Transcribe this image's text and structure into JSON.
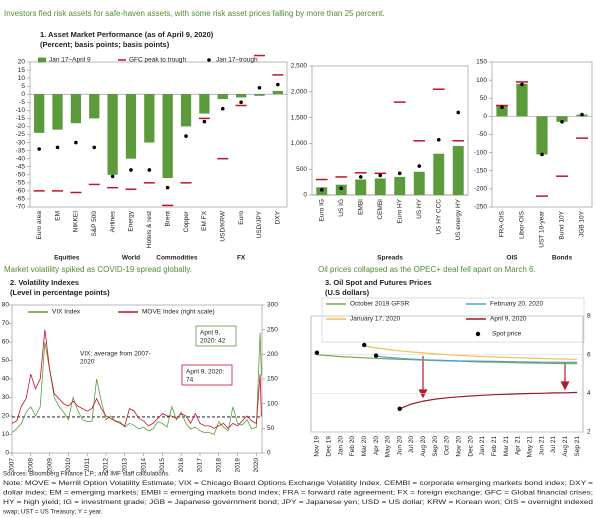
{
  "headlines": [
    "Investors fled risk assets for safe-haven assets, with some risk asset prices falling by more than 25 percent.",
    "Market volatility  spiked as COVID-19 spread globally.",
    "Oil prices collapsed as the OPEC+ deal fell apart on March 6."
  ],
  "notes": [
    "Sources: Bloomberg Finance L.P.; and IMF staff calculations.",
    "Note: MOVE = Merrill Option Volatility Estimate; VIX = Chicago Board Options Exchange Volatility Index. CEMBI = corporate emerging markets bond index; DXY =",
    "dollar index; EM = emerging markets; EMBI = emerging markets bond index; FRA = forward rate agreement; FX = foreign exchange; GFC = Global financial crises;",
    "HY = high yield; IG = investment grade; JGB = Japanese government bond; JPY = Japanese yen; USD = US dollar; KRW = Korean won; OIS = overnight indexed",
    "swap; UST = US Treasury; Y = year."
  ],
  "chart_data": [
    {
      "type": "bar",
      "title": "1. Asset Market Performance (as of April 9, 2020)",
      "subtitle": "(Percent; basis points; basis points)",
      "categories": [
        "Euro area",
        "EM",
        "NIKKEI",
        "S&P 500",
        "Airlines",
        "Energy",
        "Hotels & rest",
        "Brent",
        "Copper",
        "EM FX",
        "USD/KRW",
        "Euro",
        "USD/JPY",
        "DXY"
      ],
      "groups": [
        {
          "name": "Equities",
          "size": 4
        },
        {
          "name": "World",
          "size": 3
        },
        {
          "name": "Commodities",
          "size": 2
        },
        {
          "name": "FX",
          "size": 5
        }
      ],
      "series": [
        {
          "name": "Jan 17–April 9",
          "color": "#5b9b3c",
          "style": "bar",
          "values": [
            -24,
            -22,
            -18,
            -15,
            -50,
            -40,
            -30,
            -52,
            -20,
            -12,
            -3,
            -2,
            -1,
            2
          ]
        },
        {
          "name": "GFC peak to trough",
          "color": "#c0142b",
          "style": "dash",
          "values": [
            -60,
            -60,
            -61,
            -56,
            -58,
            -59,
            -55,
            -69,
            -55,
            -15,
            -40,
            -7,
            24,
            12
          ]
        },
        {
          "name": "Jan 17–trough",
          "color": "#000000",
          "style": "dot",
          "values": [
            -34,
            -33,
            -30,
            -33,
            -51,
            -47,
            -47,
            -58,
            -26,
            -17,
            -9,
            -5,
            4,
            6
          ]
        }
      ],
      "ylim": [
        -70,
        20
      ],
      "yticks": [
        -70,
        -65,
        -60,
        -55,
        -50,
        -45,
        -40,
        -35,
        -30,
        -25,
        -20,
        -15,
        -10,
        -5,
        0,
        5,
        10,
        15,
        20
      ]
    },
    {
      "type": "bar",
      "categories": [
        "Euro IG",
        "US IG",
        "EMBI",
        "CEMBI",
        "Euro HY",
        "US HY",
        "US HY CCC",
        "US energy HY"
      ],
      "groups": [
        {
          "name": "Spreads",
          "size": 8
        }
      ],
      "series": [
        {
          "color": "#5b9b3c",
          "style": "bar",
          "values": [
            150,
            200,
            300,
            320,
            350,
            450,
            800,
            950
          ]
        },
        {
          "color": "#c0142b",
          "style": "dash",
          "values": [
            300,
            350,
            430,
            420,
            1800,
            1050,
            2050,
            1050
          ]
        },
        {
          "color": "#000000",
          "style": "dot",
          "values": [
            100,
            130,
            350,
            380,
            420,
            560,
            1070,
            1600
          ]
        }
      ],
      "ylim": [
        0,
        2500
      ],
      "yticks": [
        0,
        500,
        {
          "value": 1000,
          "label": "1,000"
        },
        {
          "value": 1500,
          "label": "1,500"
        },
        {
          "value": 2000,
          "label": "2,000"
        },
        {
          "value": 2500,
          "label": "2,500"
        }
      ]
    },
    {
      "type": "bar",
      "categories": [
        "FRA-OIS",
        "Libor-OIS",
        "UST 10-year",
        "Bund 10Y",
        "JGB 10Y"
      ],
      "groups": [
        {
          "name": "OIS",
          "size": 2
        },
        {
          "name": "Bonds",
          "size": 3
        }
      ],
      "series": [
        {
          "color": "#5b9b3c",
          "style": "bar",
          "values": [
            30,
            90,
            -105,
            -15,
            5
          ]
        },
        {
          "color": "#c0142b",
          "style": "dash",
          "values": [
            30,
            95,
            -220,
            -165,
            -60
          ]
        },
        {
          "color": "#000000",
          "style": "dot",
          "values": [
            25,
            88,
            -105,
            -15,
            5
          ]
        }
      ],
      "ylim": [
        -250,
        150
      ],
      "yticks": [
        -250,
        -200,
        -150,
        -100,
        -50,
        0,
        50,
        100,
        150
      ]
    },
    {
      "type": "line",
      "title": "2. Volatility Indexes",
      "subtitle": "(Level in percentage points)",
      "x": [
        2007,
        2007.25,
        2007.5,
        2007.75,
        2008,
        2008.25,
        2008.5,
        2008.75,
        2009,
        2009.25,
        2009.5,
        2009.75,
        2010,
        2010.25,
        2010.5,
        2010.75,
        2011,
        2011.25,
        2011.5,
        2011.75,
        2012,
        2012.25,
        2012.5,
        2012.75,
        2013,
        2013.25,
        2013.5,
        2013.75,
        2014,
        2014.25,
        2014.5,
        2014.75,
        2015,
        2015.25,
        2015.5,
        2015.75,
        2016,
        2016.25,
        2016.5,
        2016.75,
        2017,
        2017.25,
        2017.5,
        2017.75,
        2018,
        2018.25,
        2018.5,
        2018.75,
        2019,
        2019.25,
        2019.5,
        2019.75,
        2020,
        2020.2,
        2020.27
      ],
      "series": [
        {
          "name": "VIX Index",
          "color": "#5b9b3c",
          "values": [
            11,
            13,
            16,
            22,
            25,
            20,
            25,
            60,
            45,
            30,
            25,
            22,
            18,
            30,
            23,
            18,
            17,
            17,
            40,
            28,
            18,
            20,
            17,
            17,
            14,
            16,
            15,
            13,
            14,
            12,
            13,
            17,
            16,
            14,
            25,
            18,
            22,
            16,
            13,
            14,
            12,
            11,
            11,
            10,
            17,
            14,
            12,
            25,
            16,
            15,
            18,
            13,
            14,
            65,
            42
          ]
        },
        {
          "name": "MOVE Index (right scale)",
          "color": "#c0142b",
          "axis": "y2",
          "values": [
            60,
            65,
            95,
            110,
            160,
            130,
            150,
            250,
            170,
            120,
            110,
            100,
            95,
            105,
            95,
            90,
            85,
            90,
            110,
            90,
            75,
            70,
            65,
            60,
            55,
            90,
            85,
            70,
            65,
            55,
            60,
            70,
            80,
            75,
            75,
            70,
            80,
            75,
            60,
            80,
            60,
            55,
            55,
            50,
            55,
            60,
            50,
            60,
            55,
            65,
            75,
            65,
            60,
            160,
            74
          ]
        }
      ],
      "reference_line": 19.5,
      "annotations": [
        {
          "lines": [
            "VIX: average from 2007-",
            "2020"
          ]
        },
        {
          "lines": [
            "April 9,",
            "2020: 42"
          ]
        },
        {
          "lines": [
            "April 9, 2020:",
            "74"
          ]
        }
      ],
      "xlim": [
        2007,
        2020.3
      ],
      "xticks": [
        2007,
        2008,
        2009,
        2010,
        2011,
        2012,
        2013,
        2014,
        2015,
        2016,
        2017,
        2018,
        2019,
        2020
      ],
      "ylim": [
        0,
        80
      ],
      "yticks": [
        0,
        10,
        20,
        30,
        40,
        50,
        60,
        70,
        80
      ],
      "y2lim": [
        0,
        300
      ],
      "y2ticks": [
        0,
        50,
        100,
        150,
        200,
        250,
        300
      ]
    },
    {
      "type": "line",
      "title": "3. Oil Spot and Futures Prices",
      "subtitle": "(U.S dollars)",
      "categories": [
        "Nov 19",
        "Dec 19",
        "Jan 20",
        "Feb 20",
        "Mar 20",
        "Apr 20",
        "May 20",
        "Jun 20",
        "Jul 20",
        "Aug 20",
        "Sep 20",
        "Oct 20",
        "Nov 20",
        "Dec 20",
        "Jan 21",
        "Feb 21",
        "Mar 21",
        "Apr 21",
        "May 21",
        "Jun 21",
        "Jul 21",
        "Aug 21",
        "Sep 21"
      ],
      "series": [
        {
          "name": "October 2019 GFSR",
          "color": "#7aa84a",
          "values": [
            6.0,
            5.95,
            5.9,
            5.87,
            5.84,
            5.81,
            5.78,
            5.76,
            5.74,
            5.72,
            5.7,
            5.68,
            5.66,
            5.64,
            5.62,
            5.61,
            5.6,
            5.58,
            5.57,
            5.56,
            5.55,
            5.54,
            5.53
          ]
        },
        {
          "name": "February 20, 2020",
          "color": "#4a9fd6",
          "values": [
            null,
            null,
            null,
            null,
            null,
            5.92,
            5.86,
            5.81,
            5.77,
            5.74,
            5.72,
            5.7,
            5.68,
            5.67,
            5.66,
            5.65,
            5.64,
            5.63,
            5.62,
            5.61,
            5.61,
            5.6,
            5.6
          ]
        },
        {
          "name": "January 17, 2020",
          "color": "#f2c14e",
          "values": [
            null,
            null,
            null,
            null,
            6.45,
            6.35,
            6.27,
            6.2,
            6.14,
            6.09,
            6.04,
            6.0,
            5.96,
            5.93,
            5.9,
            5.88,
            5.86,
            5.84,
            5.82,
            5.8,
            5.78,
            5.77,
            5.76
          ]
        },
        {
          "name": "April 9, 2020",
          "color": "#9b1b2a",
          "values": [
            null,
            null,
            null,
            null,
            null,
            null,
            null,
            3.2,
            3.45,
            3.6,
            3.7,
            3.77,
            3.82,
            3.86,
            3.9,
            3.93,
            3.95,
            3.97,
            3.99,
            4.0,
            4.02,
            4.03,
            4.05
          ]
        },
        {
          "name": "Spot price",
          "color": "#000000",
          "marker": "dot",
          "values": [
            6.1,
            null,
            null,
            null,
            6.5,
            5.95,
            null,
            3.2,
            null,
            null,
            null,
            null,
            null,
            null,
            null,
            null,
            null,
            null,
            null,
            null,
            null,
            null,
            null
          ]
        }
      ],
      "ylim": [
        2,
        8
      ],
      "yticks": [
        2,
        4,
        6,
        8
      ],
      "y_axis": "right"
    }
  ]
}
